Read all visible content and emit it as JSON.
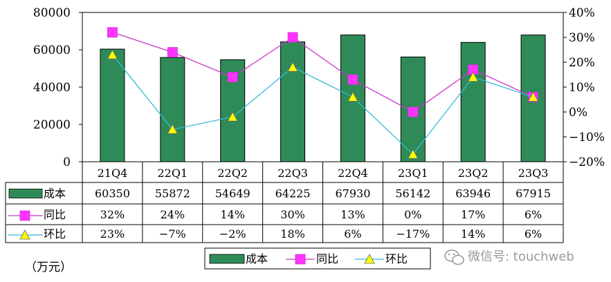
{
  "chart_data": {
    "type": "bar",
    "categories": [
      "21Q4",
      "22Q1",
      "22Q2",
      "22Q3",
      "22Q4",
      "23Q1",
      "23Q2",
      "23Q3"
    ],
    "series": [
      {
        "name": "成本",
        "kind": "bar",
        "axis": "left",
        "values": [
          60350,
          55872,
          54649,
          64225,
          67930,
          56142,
          63946,
          67915
        ],
        "labels": [
          "60350",
          "55872",
          "54649",
          "64225",
          "67930",
          "56142",
          "63946",
          "67915"
        ],
        "color": "#2e8b57"
      },
      {
        "name": "同比",
        "kind": "line",
        "axis": "right",
        "marker": "square",
        "values": [
          32,
          24,
          14,
          30,
          13,
          0,
          17,
          6
        ],
        "labels": [
          "32%",
          "24%",
          "14%",
          "30%",
          "13%",
          "0%",
          "17%",
          "6%"
        ],
        "color": "#cc33cc",
        "marker_color": "#ff33ff"
      },
      {
        "name": "环比",
        "kind": "line",
        "axis": "right",
        "marker": "triangle",
        "values": [
          23,
          -7,
          -2,
          18,
          6,
          -17,
          14,
          6
        ],
        "labels": [
          "23%",
          "−7%",
          "−2%",
          "18%",
          "6%",
          "−17%",
          "14%",
          "6%"
        ],
        "color": "#33bbdd",
        "marker_color": "#ffff00"
      }
    ],
    "ylim_left": [
      0,
      80000
    ],
    "yticks_left": [
      "80000",
      "60000",
      "40000",
      "20000",
      "0"
    ],
    "ylim_right": [
      -20,
      40
    ],
    "yticks_right": [
      "40%",
      "30%",
      "20%",
      "10%",
      "0%",
      "−10%",
      "−20%"
    ],
    "unit": "（万元）",
    "legend_position": "bottom",
    "grid": false,
    "data_table": true
  },
  "watermark": {
    "text": "微信号: touchweb"
  }
}
